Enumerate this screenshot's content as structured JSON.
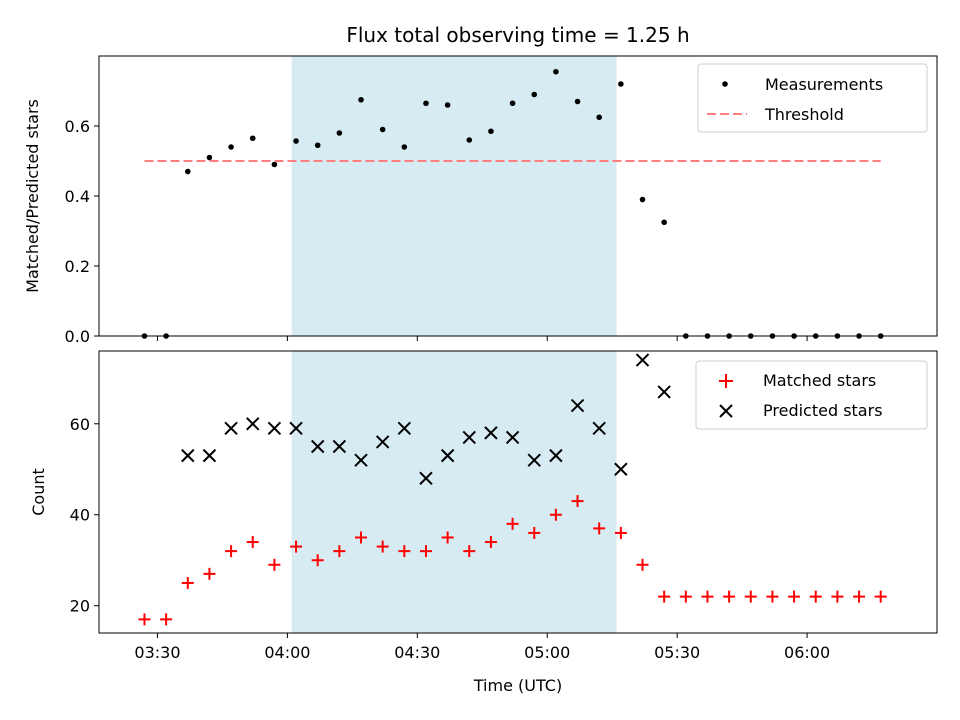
{
  "chart_data": {
    "title": "Flux total observing time = 1.25 h",
    "xlabel": "Time (UTC)",
    "x_ticks": [
      "03:30",
      "04:00",
      "04:30",
      "05:00",
      "05:30",
      "06:00"
    ],
    "x_tick_minutes": [
      210,
      240,
      270,
      300,
      330,
      360
    ],
    "xlim_minutes": [
      196.5,
      390
    ],
    "highlight_span_minutes": [
      241,
      316
    ],
    "times_minutes": [
      207,
      212,
      217,
      222,
      227,
      232,
      237,
      242,
      247,
      252,
      257,
      262,
      267,
      272,
      277,
      282,
      287,
      292,
      297,
      302,
      307,
      312,
      317,
      322,
      327,
      332,
      337,
      342,
      347,
      352,
      357,
      362,
      367,
      372,
      377
    ],
    "top": {
      "type": "scatter",
      "ylabel": "Matched/Predicted stars",
      "ylim": [
        0,
        0.8
      ],
      "y_ticks": [
        "0.0",
        "0.2",
        "0.4",
        "0.6"
      ],
      "y_tick_values": [
        0,
        0.2,
        0.4,
        0.6
      ],
      "legend_position": "top-right",
      "series": [
        {
          "name": "Measurements",
          "type": "scatter",
          "values": [
            0,
            0,
            0.47,
            0.51,
            0.54,
            0.565,
            0.49,
            0.557,
            0.545,
            0.58,
            0.675,
            0.59,
            0.54,
            0.665,
            0.66,
            0.56,
            0.585,
            0.665,
            0.69,
            0.755,
            0.67,
            0.625,
            0.72,
            0.39,
            0.325,
            0,
            0,
            0,
            0,
            0,
            0,
            0,
            0,
            0,
            0
          ]
        },
        {
          "name": "Threshold",
          "type": "line",
          "color": "#ff7f7f",
          "x": [
            207,
            377
          ],
          "values": [
            0.5,
            0.5
          ]
        }
      ]
    },
    "bottom": {
      "type": "scatter",
      "ylabel": "Count",
      "ylim": [
        14,
        76
      ],
      "y_ticks": [
        "20",
        "40",
        "60"
      ],
      "y_tick_values": [
        20,
        40,
        60
      ],
      "legend_position": "top-right",
      "series": [
        {
          "name": "Matched stars",
          "color": "#ff0000",
          "values": [
            17,
            17,
            25,
            27,
            32,
            34,
            29,
            33,
            30,
            32,
            35,
            33,
            32,
            32,
            35,
            32,
            34,
            38,
            36,
            40,
            43,
            37,
            36,
            29,
            22,
            22,
            22,
            22,
            22,
            22,
            22,
            22,
            22,
            22,
            22
          ]
        },
        {
          "name": "Predicted stars",
          "color": "#000000",
          "values": [
            null,
            null,
            53,
            53,
            59,
            60,
            59,
            59,
            55,
            55,
            52,
            56,
            59,
            48,
            53,
            57,
            58,
            57,
            52,
            53,
            64,
            59,
            50,
            74,
            67,
            null,
            null,
            null,
            null,
            null,
            null,
            null,
            null,
            null,
            null
          ]
        }
      ]
    },
    "colors": {
      "highlight": "#add8e6",
      "threshold": "#ff7f7f",
      "matched": "#ff0000",
      "predicted": "#000000",
      "measurements": "#000000"
    }
  }
}
